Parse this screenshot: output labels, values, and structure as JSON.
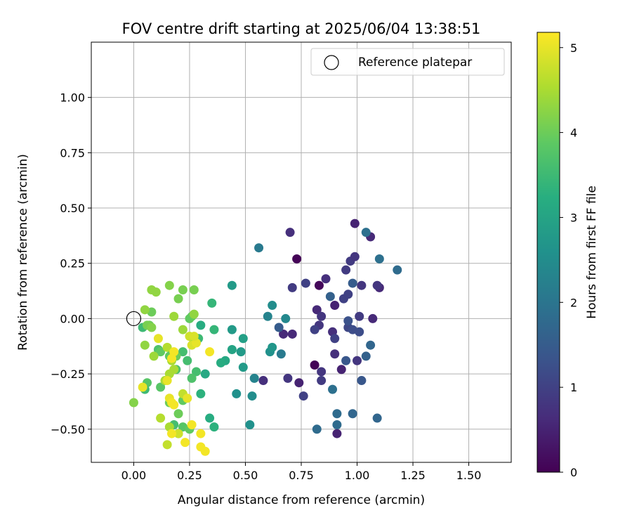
{
  "chart_data": {
    "type": "scatter",
    "title": "FOV centre drift starting at 2025/06/04 13:38:51",
    "xlabel": "Angular distance from reference (arcmin)",
    "ylabel": "Rotation from reference (arcmin)",
    "xlim": [
      -0.19,
      1.69
    ],
    "ylim": [
      -0.65,
      1.25
    ],
    "xticks": [
      "0.00",
      "0.25",
      "0.50",
      "0.75",
      "1.00",
      "1.25",
      "1.50"
    ],
    "yticks": [
      "−0.50",
      "−0.25",
      "0.00",
      "0.25",
      "0.50",
      "0.75",
      "1.00"
    ],
    "grid": true,
    "legend": {
      "location": "top-right",
      "entries": [
        "Reference platepar"
      ]
    },
    "reference_point": {
      "x": 0.0,
      "y": 0.0
    },
    "colorbar": {
      "label": "Hours from first FF file",
      "colormap": "viridis",
      "range": [
        0,
        5.18
      ],
      "ticks": [
        "0",
        "1",
        "2",
        "3",
        "4",
        "5"
      ]
    },
    "points": [
      {
        "x": 0.73,
        "y": 0.27,
        "t": 0.05
      },
      {
        "x": 0.81,
        "y": -0.21,
        "t": 0.05
      },
      {
        "x": 0.83,
        "y": 0.15,
        "t": 0.1
      },
      {
        "x": 0.91,
        "y": -0.52,
        "t": 0.5
      },
      {
        "x": 0.99,
        "y": 0.43,
        "t": 0.5
      },
      {
        "x": 1.06,
        "y": 0.37,
        "t": 0.6
      },
      {
        "x": 0.7,
        "y": 0.39,
        "t": 0.7
      },
      {
        "x": 0.93,
        "y": -0.23,
        "t": 0.5
      },
      {
        "x": 0.9,
        "y": 0.06,
        "t": 0.5
      },
      {
        "x": 1.1,
        "y": 0.14,
        "t": 0.6
      },
      {
        "x": 1.07,
        "y": 0.0,
        "t": 0.6
      },
      {
        "x": 0.74,
        "y": -0.29,
        "t": 0.5
      },
      {
        "x": 0.86,
        "y": 0.18,
        "t": 0.7
      },
      {
        "x": 0.89,
        "y": -0.06,
        "t": 0.7
      },
      {
        "x": 0.9,
        "y": -0.16,
        "t": 0.7
      },
      {
        "x": 0.84,
        "y": -0.24,
        "t": 0.8
      },
      {
        "x": 0.82,
        "y": 0.04,
        "t": 0.6
      },
      {
        "x": 0.84,
        "y": 0.01,
        "t": 0.8
      },
      {
        "x": 0.83,
        "y": -0.03,
        "t": 0.8
      },
      {
        "x": 0.67,
        "y": -0.07,
        "t": 0.6
      },
      {
        "x": 0.71,
        "y": -0.07,
        "t": 0.6
      },
      {
        "x": 0.58,
        "y": -0.28,
        "t": 0.7
      },
      {
        "x": 0.69,
        "y": -0.27,
        "t": 0.8
      },
      {
        "x": 0.71,
        "y": 0.14,
        "t": 0.9
      },
      {
        "x": 0.77,
        "y": 0.16,
        "t": 1.0
      },
      {
        "x": 0.76,
        "y": -0.35,
        "t": 1.0
      },
      {
        "x": 0.81,
        "y": -0.05,
        "t": 1.0
      },
      {
        "x": 0.84,
        "y": -0.28,
        "t": 0.9
      },
      {
        "x": 0.95,
        "y": 0.22,
        "t": 0.9
      },
      {
        "x": 0.97,
        "y": 0.26,
        "t": 0.9
      },
      {
        "x": 0.99,
        "y": 0.28,
        "t": 0.8
      },
      {
        "x": 1.02,
        "y": 0.15,
        "t": 0.8
      },
      {
        "x": 1.09,
        "y": 0.15,
        "t": 0.8
      },
      {
        "x": 1.0,
        "y": -0.19,
        "t": 0.8
      },
      {
        "x": 1.01,
        "y": 0.01,
        "t": 0.9
      },
      {
        "x": 0.94,
        "y": 0.09,
        "t": 1.0
      },
      {
        "x": 0.96,
        "y": 0.11,
        "t": 1.0
      },
      {
        "x": 0.9,
        "y": -0.09,
        "t": 1.0
      },
      {
        "x": 0.96,
        "y": -0.04,
        "t": 1.1
      },
      {
        "x": 0.98,
        "y": -0.05,
        "t": 1.2
      },
      {
        "x": 1.01,
        "y": -0.06,
        "t": 1.2
      },
      {
        "x": 0.95,
        "y": -0.19,
        "t": 1.4
      },
      {
        "x": 1.02,
        "y": -0.28,
        "t": 1.4
      },
      {
        "x": 1.04,
        "y": -0.17,
        "t": 1.6
      },
      {
        "x": 1.06,
        "y": -0.12,
        "t": 1.7
      },
      {
        "x": 0.96,
        "y": -0.01,
        "t": 1.3
      },
      {
        "x": 0.98,
        "y": 0.16,
        "t": 1.5
      },
      {
        "x": 0.88,
        "y": 0.1,
        "t": 1.6
      },
      {
        "x": 0.91,
        "y": -0.43,
        "t": 1.8
      },
      {
        "x": 0.91,
        "y": -0.48,
        "t": 1.8
      },
      {
        "x": 0.98,
        "y": -0.43,
        "t": 1.7
      },
      {
        "x": 1.09,
        "y": -0.45,
        "t": 1.7
      },
      {
        "x": 0.82,
        "y": -0.5,
        "t": 1.8
      },
      {
        "x": 0.89,
        "y": -0.32,
        "t": 1.9
      },
      {
        "x": 1.04,
        "y": 0.39,
        "t": 1.9
      },
      {
        "x": 1.1,
        "y": 0.27,
        "t": 1.9
      },
      {
        "x": 1.18,
        "y": 0.22,
        "t": 1.8
      },
      {
        "x": 0.56,
        "y": 0.32,
        "t": 2.1
      },
      {
        "x": 0.65,
        "y": -0.04,
        "t": 1.5
      },
      {
        "x": 0.66,
        "y": -0.16,
        "t": 2.1
      },
      {
        "x": 0.6,
        "y": 0.01,
        "t": 2.3
      },
      {
        "x": 0.62,
        "y": 0.06,
        "t": 2.5
      },
      {
        "x": 0.61,
        "y": -0.15,
        "t": 2.6
      },
      {
        "x": 0.62,
        "y": -0.13,
        "t": 2.7
      },
      {
        "x": 0.68,
        "y": 0.0,
        "t": 2.4
      },
      {
        "x": 0.54,
        "y": -0.27,
        "t": 2.3
      },
      {
        "x": 0.53,
        "y": -0.35,
        "t": 2.5
      },
      {
        "x": 0.52,
        "y": -0.48,
        "t": 2.6
      },
      {
        "x": 0.46,
        "y": -0.34,
        "t": 2.6
      },
      {
        "x": 0.44,
        "y": 0.15,
        "t": 2.8
      },
      {
        "x": 0.44,
        "y": -0.05,
        "t": 2.8
      },
      {
        "x": 0.48,
        "y": -0.15,
        "t": 2.8
      },
      {
        "x": 0.49,
        "y": -0.22,
        "t": 2.8
      },
      {
        "x": 0.49,
        "y": -0.09,
        "t": 2.9
      },
      {
        "x": 0.44,
        "y": -0.14,
        "t": 3.0
      },
      {
        "x": 0.41,
        "y": -0.19,
        "t": 3.1
      },
      {
        "x": 0.39,
        "y": -0.2,
        "t": 3.2
      },
      {
        "x": 0.36,
        "y": -0.49,
        "t": 3.3
      },
      {
        "x": 0.34,
        "y": -0.45,
        "t": 3.2
      },
      {
        "x": 0.3,
        "y": -0.03,
        "t": 3.2
      },
      {
        "x": 0.32,
        "y": -0.25,
        "t": 3.1
      },
      {
        "x": 0.3,
        "y": -0.34,
        "t": 3.3
      },
      {
        "x": 0.35,
        "y": 0.07,
        "t": 3.4
      },
      {
        "x": 0.36,
        "y": -0.05,
        "t": 3.4
      },
      {
        "x": 0.29,
        "y": -0.09,
        "t": 3.5
      },
      {
        "x": 0.28,
        "y": -0.24,
        "t": 3.6
      },
      {
        "x": 0.26,
        "y": -0.27,
        "t": 3.7
      },
      {
        "x": 0.22,
        "y": -0.15,
        "t": 3.6
      },
      {
        "x": 0.24,
        "y": -0.19,
        "t": 3.6
      },
      {
        "x": 0.19,
        "y": -0.23,
        "t": 3.7
      },
      {
        "x": 0.18,
        "y": -0.48,
        "t": 3.6
      },
      {
        "x": 0.2,
        "y": -0.52,
        "t": 3.6
      },
      {
        "x": 0.22,
        "y": -0.49,
        "t": 3.8
      },
      {
        "x": 0.25,
        "y": -0.5,
        "t": 3.9
      },
      {
        "x": 0.26,
        "y": 0.01,
        "t": 3.9
      },
      {
        "x": 0.27,
        "y": -0.1,
        "t": 3.8
      },
      {
        "x": 0.25,
        "y": 0.0,
        "t": 3.9
      },
      {
        "x": 0.16,
        "y": -0.38,
        "t": 4.0
      },
      {
        "x": 0.2,
        "y": -0.43,
        "t": 4.0
      },
      {
        "x": 0.22,
        "y": -0.37,
        "t": 3.9
      },
      {
        "x": 0.11,
        "y": -0.14,
        "t": 3.7
      },
      {
        "x": 0.12,
        "y": -0.15,
        "t": 3.9
      },
      {
        "x": 0.06,
        "y": -0.29,
        "t": 3.8
      },
      {
        "x": 0.05,
        "y": -0.32,
        "t": 3.5
      },
      {
        "x": 0.04,
        "y": -0.04,
        "t": 3.5
      },
      {
        "x": 0.12,
        "y": -0.31,
        "t": 3.8
      },
      {
        "x": 0.16,
        "y": -0.17,
        "t": 3.9
      },
      {
        "x": 0.17,
        "y": -0.16,
        "t": 3.9
      },
      {
        "x": 0.19,
        "y": -0.17,
        "t": 4.0
      },
      {
        "x": 0.08,
        "y": 0.03,
        "t": 4.0
      },
      {
        "x": 0.07,
        "y": -0.03,
        "t": 4.0
      },
      {
        "x": 0.06,
        "y": -0.03,
        "t": 4.1
      },
      {
        "x": 0.08,
        "y": -0.04,
        "t": 4.2
      },
      {
        "x": 0.05,
        "y": 0.04,
        "t": 4.3
      },
      {
        "x": 0.05,
        "y": -0.12,
        "t": 4.3
      },
      {
        "x": 0.08,
        "y": 0.13,
        "t": 4.3
      },
      {
        "x": 0.1,
        "y": 0.12,
        "t": 4.3
      },
      {
        "x": 0.16,
        "y": 0.15,
        "t": 4.2
      },
      {
        "x": 0.22,
        "y": 0.13,
        "t": 4.1
      },
      {
        "x": 0.27,
        "y": 0.13,
        "t": 4.1
      },
      {
        "x": 0.2,
        "y": 0.09,
        "t": 4.1
      },
      {
        "x": 0.18,
        "y": 0.01,
        "t": 4.4
      },
      {
        "x": 0.22,
        "y": -0.05,
        "t": 4.4
      },
      {
        "x": 0.27,
        "y": 0.02,
        "t": 4.3
      },
      {
        "x": 0.09,
        "y": -0.17,
        "t": 4.4
      },
      {
        "x": 0.14,
        "y": -0.28,
        "t": 4.5
      },
      {
        "x": 0.16,
        "y": -0.25,
        "t": 4.5
      },
      {
        "x": 0.18,
        "y": -0.23,
        "t": 4.5
      },
      {
        "x": 0.17,
        "y": -0.19,
        "t": 4.5
      },
      {
        "x": 0.15,
        "y": -0.13,
        "t": 4.6
      },
      {
        "x": 0.12,
        "y": -0.45,
        "t": 4.6
      },
      {
        "x": 0.16,
        "y": -0.49,
        "t": 4.5
      },
      {
        "x": 0.15,
        "y": -0.57,
        "t": 4.7
      },
      {
        "x": 0.2,
        "y": -0.52,
        "t": 4.8
      },
      {
        "x": 0.22,
        "y": -0.34,
        "t": 4.7
      },
      {
        "x": 0.25,
        "y": -0.08,
        "t": 4.8
      },
      {
        "x": 0.26,
        "y": -0.12,
        "t": 4.9
      },
      {
        "x": 0.28,
        "y": -0.11,
        "t": 5.0
      },
      {
        "x": 0.27,
        "y": -0.08,
        "t": 4.9
      },
      {
        "x": 0.11,
        "y": -0.09,
        "t": 5.0
      },
      {
        "x": 0.0,
        "y": -0.38,
        "t": 4.2
      },
      {
        "x": 0.04,
        "y": -0.31,
        "t": 5.0
      },
      {
        "x": 0.15,
        "y": -0.28,
        "t": 5.0
      },
      {
        "x": 0.17,
        "y": -0.18,
        "t": 5.1
      },
      {
        "x": 0.18,
        "y": -0.15,
        "t": 5.1
      },
      {
        "x": 0.16,
        "y": -0.36,
        "t": 5.0
      },
      {
        "x": 0.17,
        "y": -0.38,
        "t": 5.1
      },
      {
        "x": 0.18,
        "y": -0.39,
        "t": 5.1
      },
      {
        "x": 0.24,
        "y": -0.36,
        "t": 5.0
      },
      {
        "x": 0.26,
        "y": -0.48,
        "t": 5.1
      },
      {
        "x": 0.23,
        "y": -0.56,
        "t": 5.1
      },
      {
        "x": 0.3,
        "y": -0.52,
        "t": 5.1
      },
      {
        "x": 0.3,
        "y": -0.58,
        "t": 5.1
      },
      {
        "x": 0.32,
        "y": -0.6,
        "t": 5.1
      },
      {
        "x": 0.17,
        "y": -0.52,
        "t": 5.1
      },
      {
        "x": 0.34,
        "y": -0.15,
        "t": 5.1
      }
    ]
  }
}
